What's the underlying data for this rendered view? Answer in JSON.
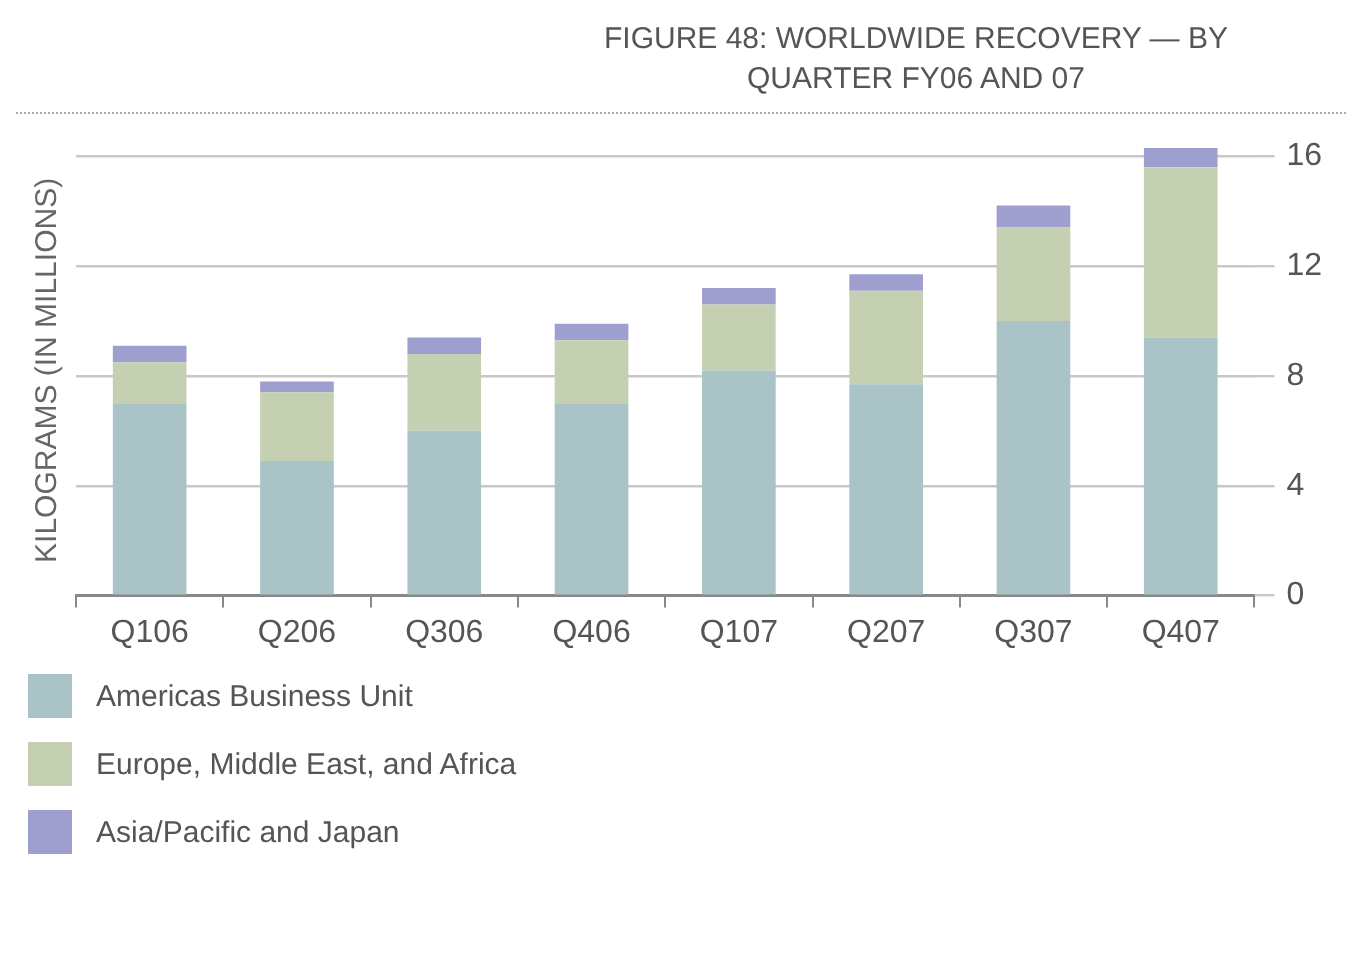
{
  "chart_data": {
    "type": "bar",
    "title": "FIGURE 48: WORLDWIDE RECOVERY — BY QUARTER FY06 AND 07",
    "ylabel": "KILOGRAMS (IN MILLIONS)",
    "categories": [
      "Q106",
      "Q206",
      "Q306",
      "Q406",
      "Q107",
      "Q207",
      "Q307",
      "Q407"
    ],
    "series": [
      {
        "name": "Americas Business Unit",
        "color": "#a9c3c7",
        "values": [
          7.0,
          4.9,
          6.0,
          7.0,
          8.2,
          7.7,
          10.0,
          9.4
        ]
      },
      {
        "name": "Europe, Middle East, and Africa",
        "color": "#c5d0b3",
        "values": [
          1.5,
          2.5,
          2.8,
          2.3,
          2.4,
          3.4,
          3.4,
          6.2
        ]
      },
      {
        "name": "Asia/Pacific and Japan",
        "color": "#9e9fcf",
        "values": [
          0.6,
          0.4,
          0.6,
          0.6,
          0.6,
          0.6,
          0.8,
          0.7
        ]
      }
    ],
    "stacked": true,
    "ylim": [
      0,
      16.4
    ],
    "yticks": [
      0,
      4,
      8,
      12,
      16
    ],
    "grid": "y",
    "legend": "bottom"
  }
}
